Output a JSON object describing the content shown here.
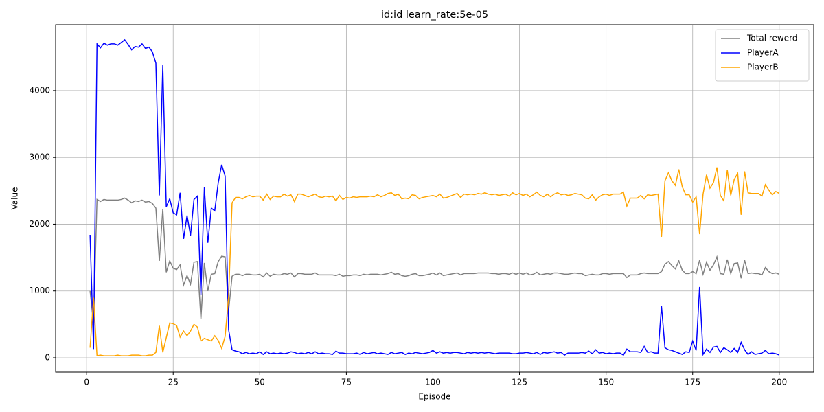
{
  "chart_data": {
    "type": "line",
    "title": "id:id  learn_rate:5e-05",
    "x_label": "Episode",
    "y_label": "Value",
    "x": [
      1,
      2,
      3,
      4,
      5,
      6,
      7,
      8,
      9,
      10,
      11,
      12,
      13,
      14,
      15,
      16,
      17,
      18,
      19,
      20,
      21,
      22,
      23,
      24,
      25,
      26,
      27,
      28,
      29,
      30,
      31,
      32,
      33,
      34,
      35,
      36,
      37,
      38,
      39,
      40,
      41,
      42,
      43,
      44,
      45,
      46,
      47,
      48,
      49,
      50,
      51,
      52,
      53,
      54,
      55,
      56,
      57,
      58,
      59,
      60,
      61,
      62,
      63,
      64,
      65,
      66,
      67,
      68,
      69,
      70,
      71,
      72,
      73,
      74,
      75,
      76,
      77,
      78,
      79,
      80,
      81,
      82,
      83,
      84,
      85,
      86,
      87,
      88,
      89,
      90,
      91,
      92,
      93,
      94,
      95,
      96,
      97,
      98,
      99,
      100,
      101,
      102,
      103,
      104,
      105,
      106,
      107,
      108,
      109,
      110,
      111,
      112,
      113,
      114,
      115,
      116,
      117,
      118,
      119,
      120,
      121,
      122,
      123,
      124,
      125,
      126,
      127,
      128,
      129,
      130,
      131,
      132,
      133,
      134,
      135,
      136,
      137,
      138,
      139,
      140,
      141,
      142,
      143,
      144,
      145,
      146,
      147,
      148,
      149,
      150,
      151,
      152,
      153,
      154,
      155,
      156,
      157,
      158,
      159,
      160,
      161,
      162,
      163,
      164,
      165,
      166,
      167,
      168,
      169,
      170,
      171,
      172,
      173,
      174,
      175,
      176,
      177,
      178,
      179,
      180,
      181,
      182,
      183,
      184,
      185,
      186,
      187,
      188,
      189,
      190,
      191,
      192,
      193,
      194,
      195,
      196,
      197,
      198,
      199,
      200
    ],
    "series": [
      {
        "name": "Total rewerd",
        "color": "#808080",
        "values": [
          1000,
          520,
          2370,
          2340,
          2370,
          2360,
          2360,
          2360,
          2360,
          2370,
          2390,
          2360,
          2320,
          2350,
          2340,
          2360,
          2330,
          2340,
          2310,
          2240,
          1450,
          2230,
          1280,
          1450,
          1340,
          1320,
          1390,
          1090,
          1230,
          1100,
          1430,
          1440,
          580,
          1420,
          1000,
          1250,
          1260,
          1440,
          1520,
          1510,
          700,
          1220,
          1250,
          1250,
          1230,
          1250,
          1250,
          1240,
          1240,
          1250,
          1210,
          1270,
          1220,
          1250,
          1240,
          1240,
          1260,
          1250,
          1270,
          1210,
          1260,
          1260,
          1250,
          1250,
          1250,
          1270,
          1240,
          1240,
          1240,
          1240,
          1240,
          1230,
          1250,
          1220,
          1230,
          1230,
          1240,
          1240,
          1230,
          1250,
          1240,
          1250,
          1250,
          1250,
          1240,
          1250,
          1260,
          1280,
          1250,
          1260,
          1230,
          1220,
          1230,
          1250,
          1260,
          1230,
          1230,
          1240,
          1250,
          1270,
          1240,
          1270,
          1230,
          1240,
          1250,
          1260,
          1270,
          1240,
          1260,
          1260,
          1260,
          1260,
          1270,
          1270,
          1270,
          1270,
          1260,
          1260,
          1250,
          1260,
          1260,
          1250,
          1270,
          1250,
          1270,
          1250,
          1270,
          1240,
          1250,
          1280,
          1240,
          1250,
          1260,
          1250,
          1270,
          1270,
          1260,
          1250,
          1250,
          1260,
          1270,
          1260,
          1260,
          1230,
          1240,
          1250,
          1240,
          1240,
          1260,
          1260,
          1250,
          1260,
          1260,
          1260,
          1260,
          1200,
          1240,
          1240,
          1240,
          1260,
          1270,
          1260,
          1260,
          1260,
          1260,
          1290,
          1400,
          1440,
          1380,
          1330,
          1450,
          1310,
          1260,
          1260,
          1290,
          1260,
          1460,
          1250,
          1430,
          1310,
          1390,
          1510,
          1260,
          1250,
          1470,
          1260,
          1410,
          1420,
          1190,
          1460,
          1260,
          1270,
          1260,
          1260,
          1240,
          1350,
          1290,
          1260,
          1270,
          1250
        ]
      },
      {
        "name": "PlayerA",
        "color": "#0000ff",
        "values": [
          1840,
          130,
          4700,
          4640,
          4710,
          4680,
          4700,
          4700,
          4680,
          4720,
          4760,
          4690,
          4610,
          4660,
          4650,
          4700,
          4630,
          4650,
          4580,
          4410,
          2430,
          4380,
          2260,
          2380,
          2170,
          2140,
          2470,
          1780,
          2130,
          1830,
          2370,
          2420,
          940,
          2550,
          1720,
          2240,
          2200,
          2620,
          2890,
          2720,
          420,
          120,
          100,
          90,
          60,
          80,
          60,
          70,
          60,
          90,
          50,
          90,
          60,
          70,
          60,
          70,
          60,
          70,
          90,
          80,
          60,
          70,
          60,
          80,
          60,
          90,
          60,
          70,
          60,
          60,
          50,
          100,
          70,
          70,
          60,
          60,
          60,
          70,
          50,
          80,
          60,
          70,
          80,
          60,
          70,
          60,
          50,
          80,
          60,
          70,
          80,
          50,
          70,
          60,
          80,
          70,
          60,
          70,
          80,
          110,
          70,
          90,
          70,
          80,
          70,
          80,
          80,
          70,
          60,
          80,
          70,
          80,
          70,
          80,
          70,
          80,
          70,
          60,
          70,
          70,
          70,
          70,
          60,
          60,
          70,
          70,
          80,
          70,
          60,
          80,
          50,
          80,
          70,
          80,
          90,
          70,
          80,
          40,
          70,
          70,
          70,
          70,
          80,
          70,
          100,
          60,
          120,
          70,
          80,
          60,
          70,
          60,
          70,
          70,
          40,
          130,
          90,
          90,
          90,
          80,
          170,
          80,
          90,
          70,
          70,
          770,
          150,
          120,
          110,
          90,
          70,
          50,
          90,
          80,
          250,
          110,
          1060,
          50,
          130,
          80,
          160,
          170,
          80,
          150,
          120,
          80,
          140,
          80,
          230,
          120,
          50,
          90,
          50,
          60,
          70,
          110,
          60,
          70,
          60,
          40
        ]
      },
      {
        "name": "PlayerB",
        "color": "#ffa500",
        "values": [
          150,
          900,
          30,
          40,
          30,
          30,
          30,
          30,
          40,
          30,
          30,
          30,
          40,
          40,
          40,
          30,
          30,
          40,
          40,
          80,
          480,
          80,
          300,
          520,
          510,
          480,
          310,
          400,
          330,
          400,
          500,
          460,
          250,
          290,
          270,
          250,
          330,
          260,
          140,
          320,
          920,
          2320,
          2400,
          2400,
          2380,
          2410,
          2430,
          2410,
          2420,
          2420,
          2360,
          2450,
          2370,
          2420,
          2410,
          2410,
          2450,
          2420,
          2440,
          2340,
          2450,
          2450,
          2430,
          2410,
          2430,
          2450,
          2410,
          2400,
          2420,
          2410,
          2420,
          2350,
          2430,
          2370,
          2400,
          2390,
          2410,
          2400,
          2410,
          2410,
          2410,
          2420,
          2410,
          2440,
          2410,
          2430,
          2460,
          2470,
          2430,
          2450,
          2380,
          2390,
          2380,
          2440,
          2430,
          2380,
          2400,
          2410,
          2420,
          2430,
          2410,
          2450,
          2390,
          2400,
          2420,
          2440,
          2460,
          2400,
          2450,
          2440,
          2450,
          2440,
          2460,
          2450,
          2470,
          2450,
          2440,
          2450,
          2430,
          2440,
          2450,
          2420,
          2470,
          2440,
          2460,
          2430,
          2450,
          2410,
          2440,
          2480,
          2430,
          2410,
          2450,
          2410,
          2450,
          2470,
          2440,
          2450,
          2430,
          2440,
          2460,
          2450,
          2440,
          2390,
          2380,
          2440,
          2360,
          2410,
          2440,
          2450,
          2430,
          2450,
          2450,
          2450,
          2480,
          2270,
          2390,
          2390,
          2390,
          2430,
          2380,
          2440,
          2430,
          2440,
          2450,
          1810,
          2650,
          2770,
          2650,
          2580,
          2820,
          2560,
          2440,
          2440,
          2330,
          2410,
          1850,
          2450,
          2740,
          2540,
          2620,
          2850,
          2430,
          2350,
          2810,
          2430,
          2670,
          2760,
          2140,
          2790,
          2470,
          2460,
          2460,
          2460,
          2420,
          2590,
          2510,
          2440,
          2490,
          2460
        ]
      }
    ],
    "xlim": [
      -8.95,
      209.95
    ],
    "ylim": [
      -216,
      4986
    ],
    "xticks": [
      0,
      25,
      50,
      75,
      100,
      125,
      150,
      175,
      200
    ],
    "yticks": [
      0,
      1000,
      2000,
      3000,
      4000
    ],
    "grid": true,
    "legend": "upper right"
  }
}
